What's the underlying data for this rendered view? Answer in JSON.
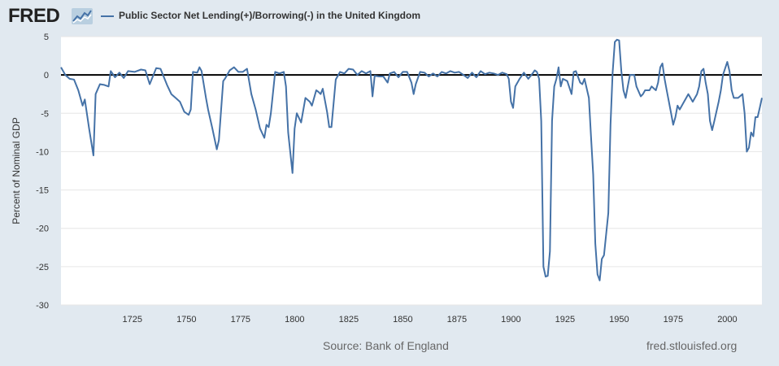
{
  "header": {
    "logo_text": "FRED",
    "logo_icon": "line-chart-icon"
  },
  "footer": {
    "source": "Source: Bank of England",
    "site": "fred.stlouisfed.org"
  },
  "colors": {
    "series": "#4572a7",
    "zero_line": "#000000",
    "grid": "#e6e6e6",
    "background": "#e1e9f0",
    "plot_bg": "#ffffff"
  },
  "chart_data": {
    "type": "line",
    "title": "",
    "xlabel": "",
    "ylabel": "Percent of Nominal GDP",
    "xlim": [
      1692,
      2016
    ],
    "ylim": [
      -30,
      5
    ],
    "grid": true,
    "legend_position": "top-left",
    "x_ticks": [
      1725,
      1750,
      1775,
      1800,
      1825,
      1850,
      1875,
      1900,
      1925,
      1950,
      1975,
      2000
    ],
    "y_ticks": [
      5,
      0,
      -5,
      -10,
      -15,
      -20,
      -25,
      -30
    ],
    "x_tick_labels": [
      "1725",
      "1750",
      "1775",
      "1800",
      "1825",
      "1850",
      "1875",
      "1900",
      "1925",
      "1950",
      "1975",
      "2000"
    ],
    "y_tick_labels": [
      "5",
      "0",
      "-5",
      "-10",
      "-15",
      "-20",
      "-25",
      "-30"
    ],
    "reference_line": 0,
    "series": [
      {
        "name": "Public Sector Net Lending(+)/Borrowing(-) in the United Kingdom",
        "points": [
          [
            1692,
            1.0
          ],
          [
            1694,
            0.0
          ],
          [
            1696,
            -0.5
          ],
          [
            1698,
            -0.6
          ],
          [
            1700,
            -2.0
          ],
          [
            1702,
            -4.0
          ],
          [
            1703,
            -3.2
          ],
          [
            1705,
            -7.0
          ],
          [
            1707,
            -10.5
          ],
          [
            1708,
            -2.5
          ],
          [
            1710,
            -1.2
          ],
          [
            1712,
            -1.3
          ],
          [
            1714,
            -1.5
          ],
          [
            1715,
            0.5
          ],
          [
            1717,
            -0.3
          ],
          [
            1719,
            0.3
          ],
          [
            1721,
            -0.4
          ],
          [
            1723,
            0.5
          ],
          [
            1726,
            0.4
          ],
          [
            1729,
            0.7
          ],
          [
            1731,
            0.6
          ],
          [
            1733,
            -1.2
          ],
          [
            1736,
            0.9
          ],
          [
            1738,
            0.8
          ],
          [
            1741,
            -1.3
          ],
          [
            1743,
            -2.5
          ],
          [
            1745,
            -3.0
          ],
          [
            1747,
            -3.5
          ],
          [
            1749,
            -4.8
          ],
          [
            1751,
            -5.2
          ],
          [
            1752,
            -4.5
          ],
          [
            1753,
            0.4
          ],
          [
            1755,
            0.3
          ],
          [
            1756,
            1.0
          ],
          [
            1757,
            0.5
          ],
          [
            1759,
            -3.0
          ],
          [
            1760,
            -4.5
          ],
          [
            1762,
            -7.0
          ],
          [
            1764,
            -9.7
          ],
          [
            1765,
            -8.5
          ],
          [
            1767,
            -0.8
          ],
          [
            1768,
            -0.4
          ],
          [
            1770,
            0.6
          ],
          [
            1772,
            1.0
          ],
          [
            1774,
            0.4
          ],
          [
            1776,
            0.4
          ],
          [
            1778,
            0.8
          ],
          [
            1780,
            -2.5
          ],
          [
            1782,
            -4.5
          ],
          [
            1784,
            -7.0
          ],
          [
            1786,
            -8.2
          ],
          [
            1787,
            -6.5
          ],
          [
            1788,
            -6.8
          ],
          [
            1789,
            -5.0
          ],
          [
            1791,
            0.4
          ],
          [
            1793,
            0.2
          ],
          [
            1795,
            0.4
          ],
          [
            1796,
            -1.5
          ],
          [
            1797,
            -7.5
          ],
          [
            1799,
            -12.8
          ],
          [
            1800,
            -7.0
          ],
          [
            1801,
            -5.0
          ],
          [
            1803,
            -6.2
          ],
          [
            1805,
            -3.0
          ],
          [
            1807,
            -3.5
          ],
          [
            1808,
            -4.0
          ],
          [
            1810,
            -2.0
          ],
          [
            1811,
            -2.2
          ],
          [
            1812,
            -2.5
          ],
          [
            1813,
            -1.8
          ],
          [
            1815,
            -4.8
          ],
          [
            1816,
            -6.8
          ],
          [
            1817,
            -6.8
          ],
          [
            1819,
            -0.6
          ],
          [
            1821,
            0.4
          ],
          [
            1823,
            0.2
          ],
          [
            1825,
            0.8
          ],
          [
            1827,
            0.7
          ],
          [
            1829,
            0.0
          ],
          [
            1831,
            0.5
          ],
          [
            1833,
            0.2
          ],
          [
            1835,
            0.5
          ],
          [
            1836,
            -2.8
          ],
          [
            1837,
            -0.1
          ],
          [
            1839,
            -0.2
          ],
          [
            1841,
            -0.2
          ],
          [
            1843,
            -1.0
          ],
          [
            1844,
            0.2
          ],
          [
            1846,
            0.4
          ],
          [
            1848,
            -0.3
          ],
          [
            1850,
            0.4
          ],
          [
            1852,
            0.4
          ],
          [
            1854,
            -1.0
          ],
          [
            1855,
            -2.5
          ],
          [
            1856,
            -1.2
          ],
          [
            1858,
            0.4
          ],
          [
            1860,
            0.3
          ],
          [
            1862,
            -0.2
          ],
          [
            1864,
            0.2
          ],
          [
            1866,
            -0.2
          ],
          [
            1868,
            0.4
          ],
          [
            1870,
            0.2
          ],
          [
            1872,
            0.5
          ],
          [
            1874,
            0.3
          ],
          [
            1876,
            0.4
          ],
          [
            1878,
            0.0
          ],
          [
            1880,
            -0.4
          ],
          [
            1882,
            0.3
          ],
          [
            1884,
            -0.3
          ],
          [
            1886,
            0.5
          ],
          [
            1888,
            0.1
          ],
          [
            1890,
            0.3
          ],
          [
            1892,
            0.2
          ],
          [
            1894,
            0.0
          ],
          [
            1896,
            0.3
          ],
          [
            1898,
            0.1
          ],
          [
            1899,
            -0.5
          ],
          [
            1900,
            -3.5
          ],
          [
            1901,
            -4.3
          ],
          [
            1902,
            -1.5
          ],
          [
            1904,
            -0.5
          ],
          [
            1906,
            0.3
          ],
          [
            1908,
            -0.5
          ],
          [
            1910,
            0.2
          ],
          [
            1911,
            0.6
          ],
          [
            1912,
            0.4
          ],
          [
            1913,
            -0.5
          ],
          [
            1914,
            -6.0
          ],
          [
            1915,
            -25.0
          ],
          [
            1916,
            -26.3
          ],
          [
            1917,
            -26.2
          ],
          [
            1918,
            -23.0
          ],
          [
            1919,
            -6.0
          ],
          [
            1920,
            -1.5
          ],
          [
            1921,
            -0.5
          ],
          [
            1922,
            1.0
          ],
          [
            1923,
            -1.5
          ],
          [
            1924,
            -0.5
          ],
          [
            1926,
            -0.8
          ],
          [
            1928,
            -2.5
          ],
          [
            1929,
            0.4
          ],
          [
            1930,
            0.5
          ],
          [
            1932,
            -1.0
          ],
          [
            1933,
            -1.2
          ],
          [
            1934,
            -0.5
          ],
          [
            1936,
            -3.0
          ],
          [
            1937,
            -8.0
          ],
          [
            1938,
            -13.0
          ],
          [
            1939,
            -22.0
          ],
          [
            1940,
            -26.0
          ],
          [
            1941,
            -26.8
          ],
          [
            1942,
            -24.0
          ],
          [
            1943,
            -23.5
          ],
          [
            1945,
            -18.0
          ],
          [
            1946,
            -6.5
          ],
          [
            1947,
            0.3
          ],
          [
            1948,
            4.3
          ],
          [
            1949,
            4.6
          ],
          [
            1950,
            4.5
          ],
          [
            1951,
            0.5
          ],
          [
            1952,
            -2.0
          ],
          [
            1953,
            -3.0
          ],
          [
            1954,
            -1.5
          ],
          [
            1955,
            0.0
          ],
          [
            1957,
            0.0
          ],
          [
            1958,
            -1.5
          ],
          [
            1960,
            -2.8
          ],
          [
            1961,
            -2.5
          ],
          [
            1962,
            -2.0
          ],
          [
            1964,
            -2.0
          ],
          [
            1965,
            -1.5
          ],
          [
            1967,
            -2.0
          ],
          [
            1968,
            -1.0
          ],
          [
            1969,
            1.0
          ],
          [
            1970,
            1.5
          ],
          [
            1971,
            -0.5
          ],
          [
            1972,
            -2.0
          ],
          [
            1973,
            -3.5
          ],
          [
            1974,
            -5.0
          ],
          [
            1975,
            -6.5
          ],
          [
            1976,
            -5.5
          ],
          [
            1977,
            -4.0
          ],
          [
            1978,
            -4.5
          ],
          [
            1980,
            -3.5
          ],
          [
            1982,
            -2.5
          ],
          [
            1983,
            -3.0
          ],
          [
            1984,
            -3.5
          ],
          [
            1986,
            -2.5
          ],
          [
            1987,
            -1.5
          ],
          [
            1988,
            0.5
          ],
          [
            1989,
            0.8
          ],
          [
            1990,
            -1.0
          ],
          [
            1991,
            -2.5
          ],
          [
            1992,
            -6.0
          ],
          [
            1993,
            -7.2
          ],
          [
            1994,
            -6.0
          ],
          [
            1996,
            -3.5
          ],
          [
            1997,
            -2.0
          ],
          [
            1998,
            0.0
          ],
          [
            2000,
            1.7
          ],
          [
            2001,
            0.5
          ],
          [
            2002,
            -2.0
          ],
          [
            2003,
            -3.0
          ],
          [
            2005,
            -3.0
          ],
          [
            2007,
            -2.5
          ],
          [
            2008,
            -5.0
          ],
          [
            2009,
            -10.0
          ],
          [
            2010,
            -9.5
          ],
          [
            2011,
            -7.5
          ],
          [
            2012,
            -8.0
          ],
          [
            2013,
            -5.5
          ],
          [
            2014,
            -5.5
          ],
          [
            2015,
            -4.3
          ],
          [
            2016,
            -3.0
          ]
        ]
      }
    ]
  }
}
